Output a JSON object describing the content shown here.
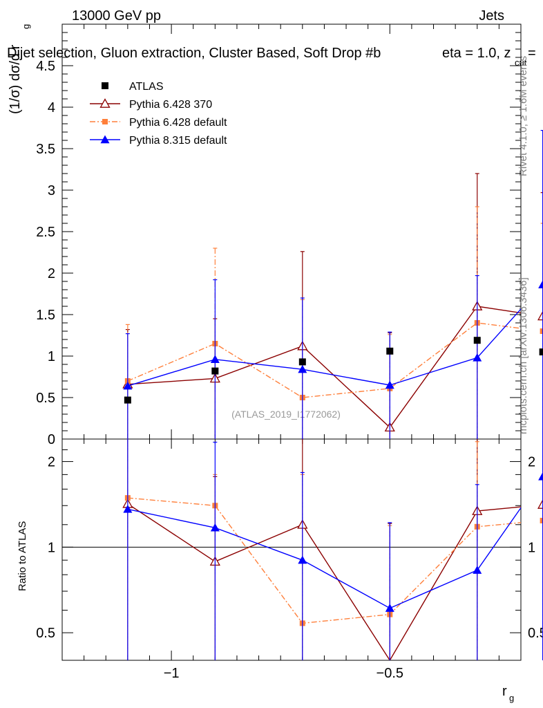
{
  "header": {
    "energy_label": "13000 GeV pp",
    "category_label": "Jets",
    "selection_title": "Dijet selection, Gluon extraction, Cluster Based, Soft Drop #b",
    "cut_label": "eta = 1.0, z",
    "cut_subscript": "cut",
    "cut_suffix": " ="
  },
  "side_text": {
    "rivet": "Rivet 4.1.0, ≥ 1.6M events",
    "mcplots": "mcplots.cern.ch [arXiv:1306.3436]"
  },
  "watermark": "(ATLAS_2019_I1772062)",
  "chart_data": [
    {
      "type": "line",
      "panel": "main",
      "ylabel": "(1/σ) dσ/d r",
      "ylabel_subscript": "g",
      "xlabel": "r",
      "xlabel_subscript": "g",
      "xlim": [
        -1.25,
        -0.2
      ],
      "ylim": [
        0,
        5
      ],
      "x_ticks": [
        -1,
        -0.5
      ],
      "x_tick_labels": [
        "−1",
        "−0.5"
      ],
      "y_ticks": [
        0,
        0.5,
        1,
        1.5,
        2,
        2.5,
        3,
        3.5,
        4,
        4.5
      ],
      "y_tick_labels": [
        "0",
        "0.5",
        "1",
        "1.5",
        "2",
        "2.5",
        "3",
        "3.5",
        "4",
        "4.5"
      ],
      "x": [
        -1.1,
        -0.9,
        -0.7,
        -0.5,
        -0.3,
        -0.15
      ],
      "series": [
        {
          "name": "ATLAS",
          "color": "#000000",
          "marker": "square",
          "line": "none",
          "values": [
            0.47,
            0.82,
            0.93,
            1.06,
            1.19,
            1.05
          ]
        },
        {
          "name": "Pythia 6.428 370",
          "color": "#8b0000",
          "marker": "open-triangle",
          "line": "solid",
          "values": [
            0.66,
            0.73,
            1.12,
            0.14,
            1.6,
            1.48
          ],
          "err_hi": [
            1.32,
            1.45,
            2.26,
            1.28,
            3.2,
            2.97
          ],
          "err_lo": [
            0,
            0,
            0,
            0,
            0,
            0
          ]
        },
        {
          "name": "Pythia 6.428 default",
          "color": "#ff7f3a",
          "marker": "filled-square",
          "line": "dashdot",
          "values": [
            0.7,
            1.15,
            0.5,
            0.61,
            1.4,
            1.3
          ],
          "err_hi": [
            1.38,
            2.3,
            1.68,
            1.26,
            2.8,
            2.6
          ],
          "err_lo": [
            0,
            0,
            0,
            0,
            0,
            0
          ]
        },
        {
          "name": "Pythia 8.315 default",
          "color": "#0000ff",
          "marker": "filled-triangle",
          "line": "solid",
          "values": [
            0.64,
            0.96,
            0.84,
            0.65,
            0.98,
            1.86
          ],
          "err_hi": [
            1.27,
            1.92,
            1.7,
            1.29,
            1.97,
            3.72
          ],
          "err_lo": [
            0,
            0,
            0,
            0,
            0,
            0
          ]
        }
      ]
    },
    {
      "type": "line",
      "panel": "ratio",
      "ylabel": "Ratio to ATLAS",
      "yscale": "log",
      "ylim": [
        0.4,
        2.4
      ],
      "y_ticks": [
        0.5,
        1,
        2
      ],
      "y_tick_labels": [
        "0.5",
        "1",
        "2"
      ],
      "reference_line": 1,
      "x": [
        -1.1,
        -0.9,
        -0.7,
        -0.5,
        -0.3,
        -0.15
      ],
      "series": [
        {
          "name": "Pythia 6.428 370",
          "color": "#8b0000",
          "marker": "open-triangle",
          "line": "solid",
          "values": [
            1.42,
            0.89,
            1.2,
            0.13,
            1.34,
            1.41
          ],
          "err_hi": [
            2.8,
            1.77,
            2.43,
            1.21,
            2.69,
            2.83
          ],
          "err_lo": [
            0.02,
            0.02,
            0.02,
            0.02,
            0.02,
            0.02
          ]
        },
        {
          "name": "Pythia 6.428 default",
          "color": "#ff7f3a",
          "marker": "filled-square",
          "line": "dashdot",
          "values": [
            1.49,
            1.4,
            0.54,
            0.58,
            1.18,
            1.24
          ],
          "err_hi": [
            2.94,
            1.8,
            1.8,
            1.19,
            2.35,
            2.47
          ],
          "err_lo": [
            0.02,
            0.02,
            0.02,
            0.02,
            0.02,
            0.02
          ]
        },
        {
          "name": "Pythia 8.315 default",
          "color": "#0000ff",
          "marker": "filled-triangle",
          "line": "solid",
          "values": [
            1.36,
            1.17,
            0.9,
            0.61,
            0.83,
            1.77
          ],
          "err_hi": [
            2.7,
            2.34,
            1.83,
            1.22,
            1.66,
            3.54
          ],
          "err_lo": [
            0.02,
            0.02,
            0.02,
            0.02,
            0.02,
            0.02
          ]
        }
      ]
    }
  ]
}
